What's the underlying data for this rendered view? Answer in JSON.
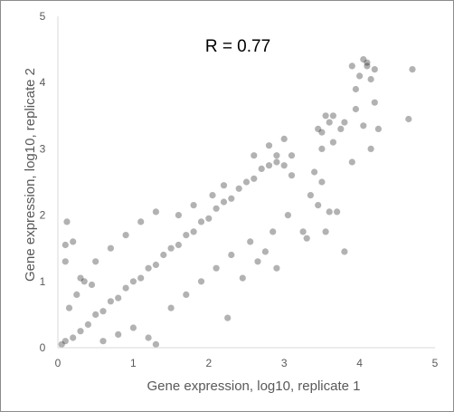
{
  "chart_data": {
    "type": "scatter",
    "xlabel": "Gene expression, log10, replicate 1",
    "ylabel": "Gene expression, log10, replicate 2",
    "annotation": "R = 0.77",
    "xlim": [
      0,
      5
    ],
    "ylim": [
      0,
      5
    ],
    "xticks": [
      0,
      1,
      2,
      3,
      4,
      5
    ],
    "yticks": [
      0,
      1,
      2,
      3,
      4,
      5
    ],
    "grid": false,
    "marker_color": "#000000",
    "axis_color": "#d9d9d9",
    "text_color": "#595959",
    "series": [
      {
        "points": [
          [
            0.05,
            0.05
          ],
          [
            0.1,
            0.1
          ],
          [
            0.2,
            0.15
          ],
          [
            0.3,
            0.25
          ],
          [
            0.4,
            0.35
          ],
          [
            0.5,
            0.5
          ],
          [
            0.6,
            0.55
          ],
          [
            0.7,
            0.7
          ],
          [
            0.8,
            0.75
          ],
          [
            0.9,
            0.9
          ],
          [
            1.0,
            1.0
          ],
          [
            1.1,
            1.05
          ],
          [
            1.2,
            1.2
          ],
          [
            1.3,
            1.25
          ],
          [
            1.4,
            1.4
          ],
          [
            1.5,
            1.5
          ],
          [
            1.6,
            1.55
          ],
          [
            1.7,
            1.7
          ],
          [
            1.8,
            1.75
          ],
          [
            1.9,
            1.9
          ],
          [
            2.0,
            1.95
          ],
          [
            2.1,
            2.1
          ],
          [
            2.2,
            2.2
          ],
          [
            2.3,
            2.25
          ],
          [
            2.4,
            2.4
          ],
          [
            2.5,
            2.5
          ],
          [
            2.6,
            2.55
          ],
          [
            2.7,
            2.7
          ],
          [
            2.8,
            2.75
          ],
          [
            2.9,
            2.9
          ],
          [
            0.15,
            0.6
          ],
          [
            0.25,
            0.8
          ],
          [
            0.35,
            1.0
          ],
          [
            0.1,
            1.3
          ],
          [
            0.2,
            1.6
          ],
          [
            0.6,
            0.1
          ],
          [
            0.8,
            0.2
          ],
          [
            1.0,
            0.3
          ],
          [
            1.2,
            0.15
          ],
          [
            1.3,
            0.05
          ],
          [
            0.5,
            1.3
          ],
          [
            0.7,
            1.5
          ],
          [
            0.9,
            1.7
          ],
          [
            1.1,
            1.9
          ],
          [
            1.3,
            2.05
          ],
          [
            1.5,
            0.6
          ],
          [
            1.7,
            0.8
          ],
          [
            1.9,
            1.0
          ],
          [
            2.1,
            1.2
          ],
          [
            2.3,
            1.4
          ],
          [
            0.1,
            1.55
          ],
          [
            0.12,
            1.9
          ],
          [
            0.3,
            1.05
          ],
          [
            0.45,
            0.95
          ],
          [
            1.6,
            2.0
          ],
          [
            1.8,
            2.15
          ],
          [
            2.05,
            2.3
          ],
          [
            2.2,
            2.45
          ],
          [
            2.6,
            2.9
          ],
          [
            2.8,
            3.05
          ],
          [
            2.9,
            2.8
          ],
          [
            3.0,
            3.15
          ],
          [
            3.1,
            2.6
          ],
          [
            3.1,
            2.9
          ],
          [
            3.05,
            2.0
          ],
          [
            3.25,
            1.75
          ],
          [
            3.3,
            1.65
          ],
          [
            2.85,
            1.75
          ],
          [
            2.9,
            1.2
          ],
          [
            2.25,
            0.45
          ],
          [
            2.45,
            1.05
          ],
          [
            2.65,
            1.3
          ],
          [
            2.75,
            1.45
          ],
          [
            3.45,
            2.15
          ],
          [
            3.6,
            2.05
          ],
          [
            3.7,
            2.05
          ],
          [
            3.55,
            1.75
          ],
          [
            3.8,
            1.45
          ],
          [
            3.5,
            2.5
          ],
          [
            3.35,
            2.3
          ],
          [
            3.5,
            3.0
          ],
          [
            3.65,
            3.1
          ],
          [
            3.75,
            3.3
          ],
          [
            3.6,
            3.4
          ],
          [
            3.65,
            3.5
          ],
          [
            3.55,
            3.5
          ],
          [
            3.8,
            3.4
          ],
          [
            3.95,
            3.9
          ],
          [
            3.95,
            3.6
          ],
          [
            3.9,
            2.8
          ],
          [
            4.15,
            3.0
          ],
          [
            4.25,
            3.3
          ],
          [
            4.05,
            3.35
          ],
          [
            3.4,
            2.65
          ],
          [
            3.45,
            3.3
          ],
          [
            4.2,
            3.7
          ],
          [
            4.1,
            4.3
          ],
          [
            4.2,
            4.2
          ],
          [
            4.15,
            4.05
          ],
          [
            4.0,
            4.1
          ],
          [
            3.9,
            4.25
          ],
          [
            4.05,
            4.35
          ],
          [
            4.1,
            4.25
          ],
          [
            4.7,
            4.2
          ],
          [
            4.65,
            3.45
          ],
          [
            3.0,
            2.75
          ],
          [
            2.55,
            1.6
          ],
          [
            3.5,
            3.25
          ]
        ]
      }
    ]
  }
}
